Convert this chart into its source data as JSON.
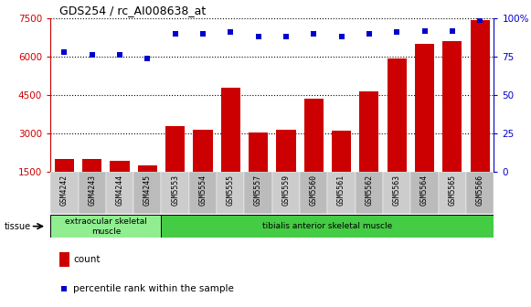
{
  "title": "GDS254 / rc_AI008638_at",
  "categories": [
    "GSM4242",
    "GSM4243",
    "GSM4244",
    "GSM4245",
    "GSM5553",
    "GSM5554",
    "GSM5555",
    "GSM5557",
    "GSM5559",
    "GSM5560",
    "GSM5561",
    "GSM5562",
    "GSM5563",
    "GSM5564",
    "GSM5565",
    "GSM5566"
  ],
  "counts": [
    2000,
    2000,
    1950,
    1750,
    3300,
    3150,
    4800,
    3050,
    3150,
    4350,
    3100,
    4650,
    5950,
    6500,
    6600,
    7450
  ],
  "percentiles": [
    78,
    76,
    76,
    74,
    90,
    90,
    91,
    88,
    88,
    90,
    88,
    90,
    91,
    92,
    92,
    99
  ],
  "bar_color": "#cc0000",
  "dot_color": "#0000cc",
  "ylim_left": [
    1500,
    7500
  ],
  "ylim_right": [
    0,
    100
  ],
  "yticks_left": [
    1500,
    3000,
    4500,
    6000,
    7500
  ],
  "yticks_right": [
    0,
    25,
    50,
    75,
    100
  ],
  "tissue_groups": [
    {
      "label": "extraocular skeletal\nmuscle",
      "start": 0,
      "end": 4,
      "color": "#90ee90"
    },
    {
      "label": "tibialis anterior skeletal muscle",
      "start": 4,
      "end": 16,
      "color": "#44cc44"
    }
  ],
  "tissue_label": "tissue",
  "legend_count_label": "count",
  "legend_percentile_label": "percentile rank within the sample",
  "bg_color": "#ffffff",
  "tick_label_color_left": "#cc0000",
  "tick_label_color_right": "#0000cc",
  "bar_width": 0.7
}
